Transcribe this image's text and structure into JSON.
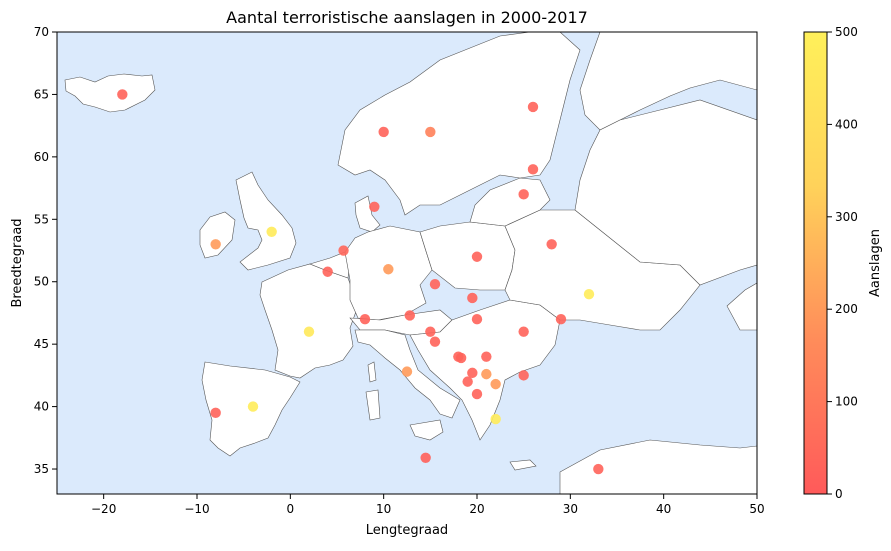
{
  "chart_data": {
    "type": "scatter",
    "title": "Aantal terroristische aanslagen in 2000-2017",
    "xlabel": "Lengtegraad",
    "ylabel": "Breedtegraad",
    "xlim": [
      -25,
      50
    ],
    "ylim": [
      33,
      70
    ],
    "x_ticks": [
      -20,
      -10,
      0,
      10,
      20,
      30,
      40,
      50
    ],
    "x_tick_labels": [
      "−20",
      "−10",
      "0",
      "10",
      "20",
      "30",
      "40",
      "50"
    ],
    "y_ticks": [
      35,
      40,
      45,
      50,
      55,
      60,
      65,
      70
    ],
    "y_tick_labels": [
      "35",
      "40",
      "45",
      "50",
      "55",
      "60",
      "65",
      "70"
    ],
    "grid": false,
    "colorbar": {
      "label": "Aanslagen",
      "range": [
        0,
        500
      ],
      "ticks": [
        0,
        100,
        200,
        300,
        400,
        500
      ],
      "tick_labels": [
        "0",
        "100",
        "200",
        "300",
        "400",
        "500"
      ],
      "colors": [
        "#ff5a5a",
        "#ff8c5a",
        "#ffd25a",
        "#fff05a"
      ]
    },
    "colors": {
      "ocean": "#dbeafc",
      "land": "#ffffff",
      "border": "#555555"
    },
    "points": [
      {
        "lon": -18,
        "lat": 65,
        "value": 30
      },
      {
        "lon": -8,
        "lat": 53,
        "value": 200
      },
      {
        "lon": -2,
        "lat": 54,
        "value": 470
      },
      {
        "lon": -8,
        "lat": 39.5,
        "value": 30
      },
      {
        "lon": -4,
        "lat": 40,
        "value": 480
      },
      {
        "lon": 2,
        "lat": 46,
        "value": 460
      },
      {
        "lon": 4,
        "lat": 50.8,
        "value": 30
      },
      {
        "lon": 5.7,
        "lat": 52.5,
        "value": 40
      },
      {
        "lon": 8,
        "lat": 47,
        "value": 30
      },
      {
        "lon": 9,
        "lat": 56,
        "value": 30
      },
      {
        "lon": 10,
        "lat": 62,
        "value": 30
      },
      {
        "lon": 10.5,
        "lat": 51,
        "value": 200
      },
      {
        "lon": 15,
        "lat": 62,
        "value": 130
      },
      {
        "lon": 12.8,
        "lat": 47.3,
        "value": 30
      },
      {
        "lon": 15.5,
        "lat": 49.8,
        "value": 30
      },
      {
        "lon": 12.5,
        "lat": 42.8,
        "value": 200
      },
      {
        "lon": 14.5,
        "lat": 35.9,
        "value": 20
      },
      {
        "lon": 15,
        "lat": 46,
        "value": 30
      },
      {
        "lon": 15.5,
        "lat": 45.2,
        "value": 30
      },
      {
        "lon": 18,
        "lat": 44,
        "value": 30
      },
      {
        "lon": 18.3,
        "lat": 43.9,
        "value": 30
      },
      {
        "lon": 19,
        "lat": 42,
        "value": 30
      },
      {
        "lon": 19.5,
        "lat": 42.7,
        "value": 30
      },
      {
        "lon": 19.5,
        "lat": 48.7,
        "value": 30
      },
      {
        "lon": 20,
        "lat": 47,
        "value": 30
      },
      {
        "lon": 20,
        "lat": 52,
        "value": 30
      },
      {
        "lon": 20,
        "lat": 41,
        "value": 30
      },
      {
        "lon": 21,
        "lat": 44,
        "value": 30
      },
      {
        "lon": 21,
        "lat": 42.6,
        "value": 200
      },
      {
        "lon": 22,
        "lat": 41.8,
        "value": 200
      },
      {
        "lon": 22,
        "lat": 39,
        "value": 480
      },
      {
        "lon": 25,
        "lat": 46,
        "value": 30
      },
      {
        "lon": 25,
        "lat": 42.5,
        "value": 30
      },
      {
        "lon": 25,
        "lat": 57,
        "value": 30
      },
      {
        "lon": 26,
        "lat": 59,
        "value": 30
      },
      {
        "lon": 26,
        "lat": 64,
        "value": 30
      },
      {
        "lon": 28,
        "lat": 53,
        "value": 30
      },
      {
        "lon": 29,
        "lat": 47,
        "value": 30
      },
      {
        "lon": 32,
        "lat": 49,
        "value": 480
      },
      {
        "lon": 33,
        "lat": 35,
        "value": 30
      }
    ]
  }
}
